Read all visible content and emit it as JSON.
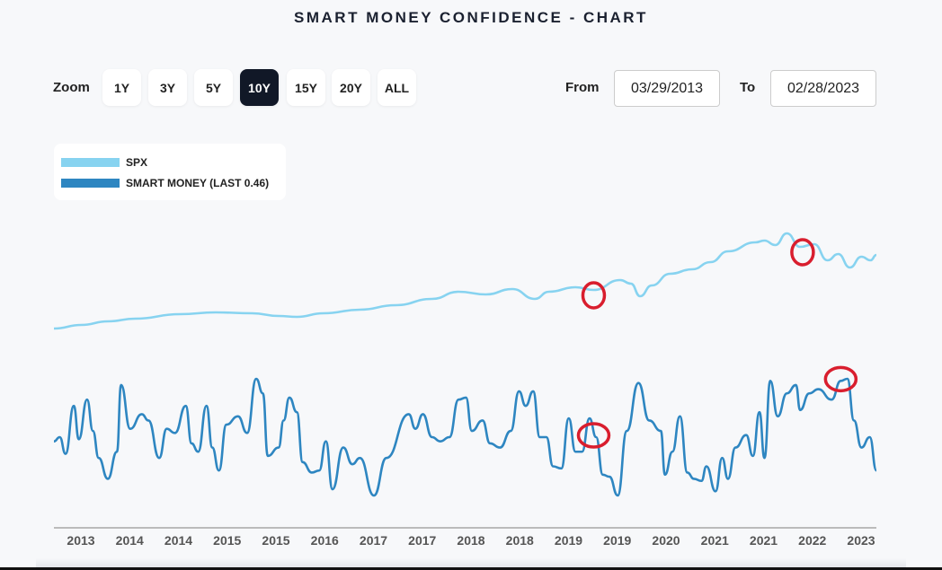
{
  "title": "SMART MONEY CONFIDENCE - CHART",
  "zoom": {
    "label": "Zoom",
    "options": [
      "1Y",
      "3Y",
      "5Y",
      "10Y",
      "15Y",
      "20Y",
      "ALL"
    ],
    "selected": "10Y"
  },
  "range": {
    "from_label": "From",
    "from": "03/29/2013",
    "to_label": "To",
    "to": "02/28/2023"
  },
  "colors": {
    "spx": "#87d3f0",
    "smart_money": "#2e86c1",
    "annotation": "#d91e2e",
    "axis": "#bbbbbb"
  },
  "chart_data": {
    "type": "line",
    "title": "SMART MONEY CONFIDENCE - CHART",
    "xlabel": "",
    "ylabel": "",
    "grid": false,
    "legend_position": "top-left",
    "x_tick_labels": [
      "2013",
      "2014",
      "2014",
      "2015",
      "2015",
      "2016",
      "2017",
      "2017",
      "2018",
      "2018",
      "2019",
      "2019",
      "2020",
      "2021",
      "2021",
      "2022",
      "2023"
    ],
    "xlim": [
      2013.24,
      2023.16
    ],
    "series": [
      {
        "name": "SPX",
        "legend": "SPX",
        "ylim": [
          1570,
          4750
        ],
        "x": [
          2013.24,
          2013.57,
          2013.89,
          2014.22,
          2014.76,
          2015.19,
          2015.63,
          2015.95,
          2016.17,
          2016.49,
          2016.93,
          2017.36,
          2017.8,
          2018.12,
          2018.45,
          2018.77,
          2019.04,
          2019.21,
          2019.53,
          2019.75,
          2020.07,
          2020.2,
          2020.31,
          2020.45,
          2020.67,
          2020.94,
          2021.16,
          2021.37,
          2021.7,
          2021.81,
          2021.94,
          2022.08,
          2022.24,
          2022.41,
          2022.57,
          2022.7,
          2022.84,
          2022.98,
          2023.09,
          2023.16
        ],
        "y": [
          1570,
          1690,
          1810,
          1900,
          2050,
          2110,
          2080,
          1990,
          1960,
          2080,
          2200,
          2350,
          2560,
          2800,
          2710,
          2890,
          2560,
          2800,
          2950,
          2860,
          3190,
          3070,
          2650,
          3010,
          3400,
          3550,
          3790,
          4150,
          4450,
          4510,
          4360,
          4750,
          4300,
          4390,
          3850,
          4060,
          3610,
          3970,
          3850,
          4030
        ]
      },
      {
        "name": "SMART MONEY",
        "legend": "SMART MONEY (LAST 0.46)",
        "last": 0.46,
        "ylim": [
          0.34,
          0.9
        ],
        "x": [
          2013.24,
          2013.31,
          2013.38,
          2013.48,
          2013.54,
          2013.64,
          2013.71,
          2013.78,
          2013.89,
          2014.0,
          2014.05,
          2014.16,
          2014.3,
          2014.38,
          2014.51,
          2014.6,
          2014.7,
          2014.83,
          2014.9,
          2014.98,
          2015.08,
          2015.15,
          2015.23,
          2015.32,
          2015.46,
          2015.57,
          2015.68,
          2015.76,
          2015.82,
          2015.95,
          2016.01,
          2016.08,
          2016.17,
          2016.24,
          2016.35,
          2016.44,
          2016.52,
          2016.6,
          2016.73,
          2016.84,
          2016.93,
          2017.1,
          2017.25,
          2017.52,
          2017.6,
          2017.69,
          2017.8,
          2017.9,
          2018.01,
          2018.12,
          2018.21,
          2018.28,
          2018.41,
          2018.5,
          2018.62,
          2018.75,
          2018.85,
          2018.93,
          2019.02,
          2019.1,
          2019.18,
          2019.26,
          2019.36,
          2019.45,
          2019.53,
          2019.61,
          2019.7,
          2019.78,
          2019.86,
          2019.94,
          2020.04,
          2020.15,
          2020.29,
          2020.42,
          2020.56,
          2020.61,
          2020.7,
          2020.79,
          2020.88,
          2020.96,
          2021.05,
          2021.11,
          2021.22,
          2021.3,
          2021.37,
          2021.46,
          2021.59,
          2021.67,
          2021.75,
          2021.81,
          2021.88,
          2021.97,
          2022.08,
          2022.19,
          2022.24,
          2022.35,
          2022.46,
          2022.62,
          2022.73,
          2022.81,
          2022.89,
          2022.98,
          2023.08,
          2023.16
        ],
        "y": [
          0.6,
          0.62,
          0.54,
          0.77,
          0.61,
          0.8,
          0.65,
          0.52,
          0.42,
          0.55,
          0.87,
          0.66,
          0.73,
          0.7,
          0.52,
          0.66,
          0.64,
          0.77,
          0.59,
          0.55,
          0.77,
          0.57,
          0.46,
          0.68,
          0.72,
          0.64,
          0.9,
          0.83,
          0.53,
          0.57,
          0.7,
          0.81,
          0.74,
          0.5,
          0.45,
          0.46,
          0.6,
          0.37,
          0.57,
          0.49,
          0.52,
          0.34,
          0.52,
          0.73,
          0.66,
          0.73,
          0.62,
          0.6,
          0.62,
          0.8,
          0.81,
          0.65,
          0.7,
          0.59,
          0.57,
          0.65,
          0.84,
          0.77,
          0.84,
          0.62,
          0.62,
          0.48,
          0.47,
          0.71,
          0.55,
          0.55,
          0.71,
          0.62,
          0.44,
          0.43,
          0.34,
          0.65,
          0.88,
          0.7,
          0.65,
          0.44,
          0.55,
          0.72,
          0.45,
          0.42,
          0.41,
          0.48,
          0.36,
          0.52,
          0.42,
          0.57,
          0.63,
          0.53,
          0.74,
          0.52,
          0.89,
          0.72,
          0.83,
          0.87,
          0.75,
          0.83,
          0.85,
          0.8,
          0.89,
          0.9,
          0.7,
          0.57,
          0.62,
          0.46
        ]
      }
    ],
    "annotations": [
      {
        "type": "hand-drawn-circle",
        "series": "SPX",
        "x": 2019.75
      },
      {
        "type": "hand-drawn-circle",
        "series": "SPX",
        "x": 2022.27
      },
      {
        "type": "hand-drawn-circle",
        "series": "SMART MONEY",
        "x": 2019.75
      },
      {
        "type": "hand-drawn-circle",
        "series": "SMART MONEY",
        "x": 2022.73
      }
    ]
  }
}
